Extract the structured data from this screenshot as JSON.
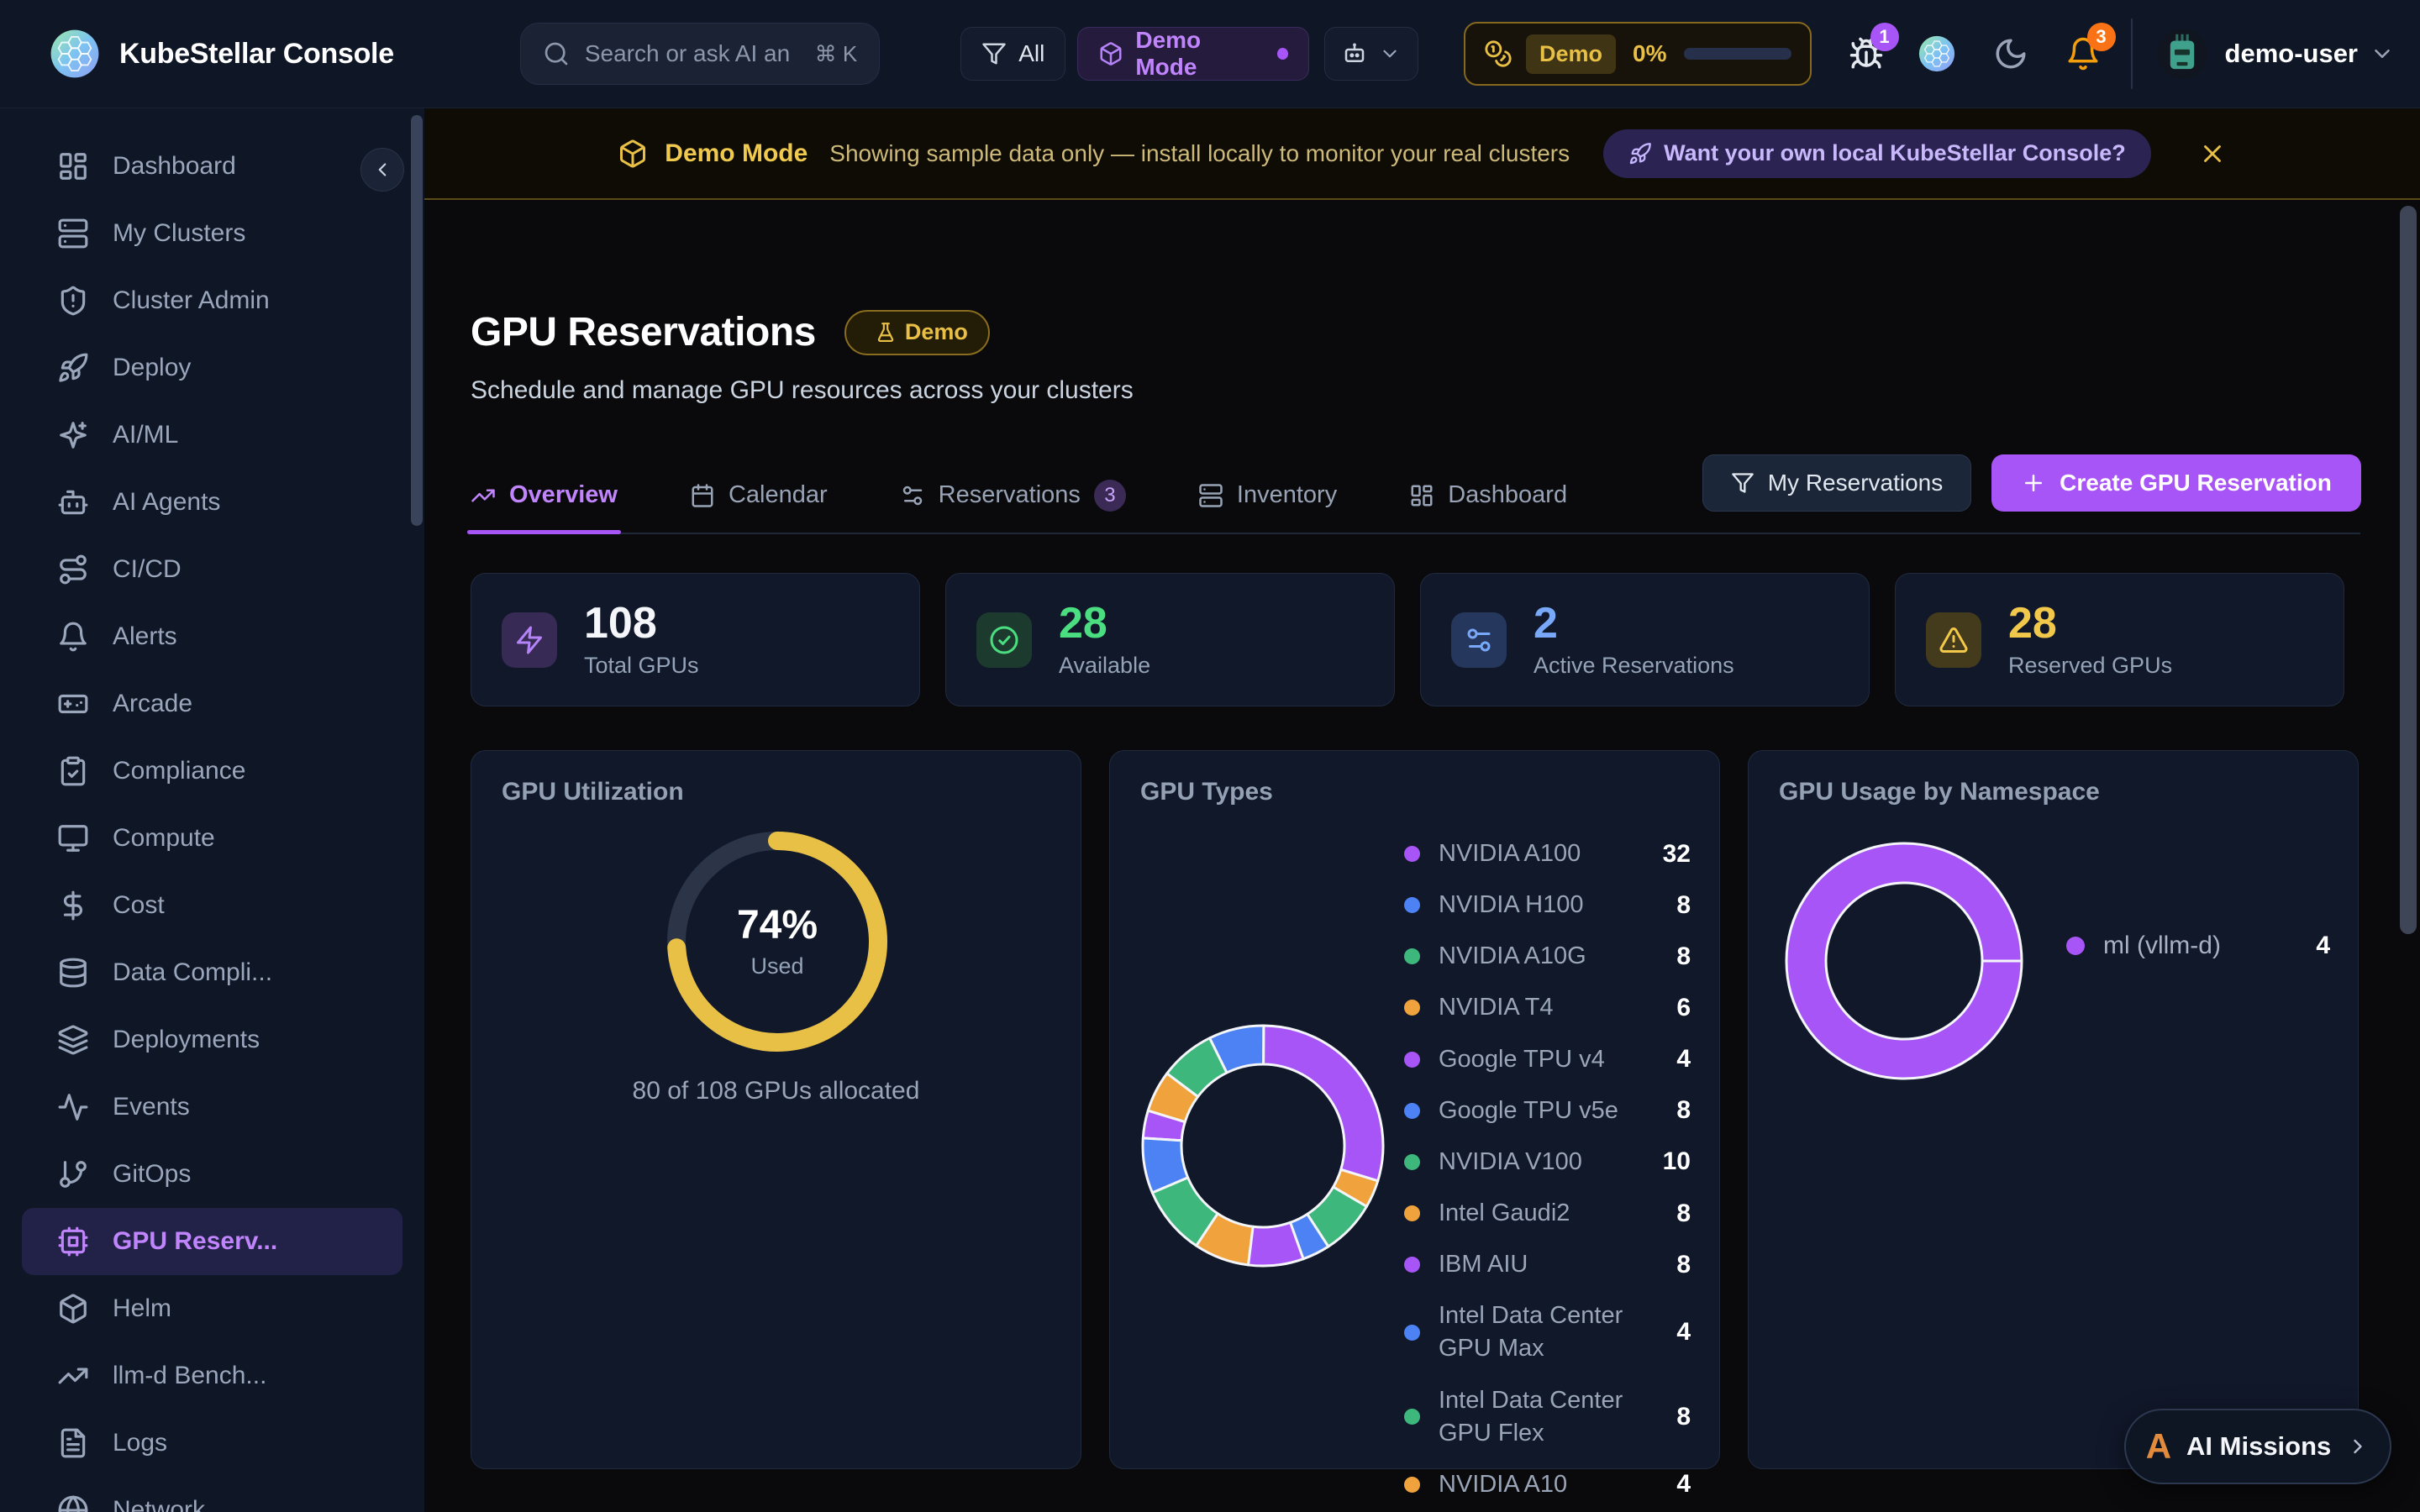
{
  "header": {
    "app_title": "KubeStellar Console",
    "search_placeholder": "Search or ask AI an",
    "search_shortcut": "⌘ K",
    "filter_all": "All",
    "demo_mode": "Demo Mode",
    "usage_badge": "Demo",
    "usage_percent": "0%",
    "bug_badge": "1",
    "bell_badge": "3",
    "user_name": "demo-user"
  },
  "sidebar": {
    "items": [
      {
        "label": "Dashboard",
        "icon": "layout"
      },
      {
        "label": "My Clusters",
        "icon": "servers"
      },
      {
        "label": "Cluster Admin",
        "icon": "shield"
      },
      {
        "label": "Deploy",
        "icon": "rocket"
      },
      {
        "label": "AI/ML",
        "icon": "sparkles"
      },
      {
        "label": "AI Agents",
        "icon": "bot"
      },
      {
        "label": "CI/CD",
        "icon": "route"
      },
      {
        "label": "Alerts",
        "icon": "bell"
      },
      {
        "label": "Arcade",
        "icon": "gamepad"
      },
      {
        "label": "Compliance",
        "icon": "clipboard"
      },
      {
        "label": "Compute",
        "icon": "monitor"
      },
      {
        "label": "Cost",
        "icon": "dollar"
      },
      {
        "label": "Data Compli...",
        "icon": "database"
      },
      {
        "label": "Deployments",
        "icon": "layers"
      },
      {
        "label": "Events",
        "icon": "activity"
      },
      {
        "label": "GitOps",
        "icon": "git"
      },
      {
        "label": "GPU Reserv...",
        "icon": "cpu",
        "active": true
      },
      {
        "label": "Helm",
        "icon": "box"
      },
      {
        "label": "llm-d Bench...",
        "icon": "trend"
      },
      {
        "label": "Logs",
        "icon": "file"
      },
      {
        "label": "Network",
        "icon": "globe"
      }
    ]
  },
  "banner": {
    "title": "Demo Mode",
    "message": "Showing sample data only — install locally to monitor your real clusters",
    "cta": "Want your own local KubeStellar Console?"
  },
  "page": {
    "title": "GPU Reservations",
    "badge": "Demo",
    "subtitle": "Schedule and manage GPU resources across your clusters"
  },
  "tabs": [
    {
      "label": "Overview",
      "icon": "trend",
      "active": true
    },
    {
      "label": "Calendar",
      "icon": "calendar"
    },
    {
      "label": "Reservations",
      "icon": "sliders",
      "badge": "3"
    },
    {
      "label": "Inventory",
      "icon": "servers"
    },
    {
      "label": "Dashboard",
      "icon": "layout"
    }
  ],
  "actions": {
    "my_reservations": "My Reservations",
    "create": "Create GPU Reservation"
  },
  "stats": [
    {
      "icon": "zap",
      "value": "108",
      "label": "Total GPUs",
      "value_color": "#f4f6fa",
      "tile_bg": "#372a54",
      "icon_color": "#b583f8"
    },
    {
      "icon": "check",
      "value": "28",
      "label": "Available",
      "value_color": "#4ade80",
      "tile_bg": "#1c3b2e",
      "icon_color": "#4ade80"
    },
    {
      "icon": "sliders",
      "value": "2",
      "label": "Active Reservations",
      "value_color": "#7aa8f9",
      "tile_bg": "#25375c",
      "icon_color": "#7aa8f9"
    },
    {
      "icon": "alert",
      "value": "28",
      "label": "Reserved GPUs",
      "value_color": "#f2c84b",
      "tile_bg": "#443a1c",
      "icon_color": "#f2c84b"
    }
  ],
  "chart_data": [
    {
      "type": "donut",
      "title": "GPU Utilization",
      "percent": 74,
      "center_label": "74%",
      "center_sublabel": "Used",
      "caption": "80 of 108 GPUs allocated",
      "arc_color": "#e9c046",
      "track_color": "#2b3547"
    },
    {
      "type": "donut",
      "title": "GPU Types",
      "start_angle": -17,
      "direction": "counterclockwise",
      "categories": [
        "NVIDIA A100",
        "NVIDIA H100",
        "NVIDIA A10G",
        "NVIDIA T4",
        "Google TPU v4",
        "Google TPU v5e",
        "NVIDIA V100",
        "Intel Gaudi2",
        "IBM AIU",
        "Intel Data Center GPU Max",
        "Intel Data Center GPU Flex",
        "NVIDIA A10"
      ],
      "values": [
        32,
        8,
        8,
        6,
        4,
        8,
        10,
        8,
        8,
        4,
        8,
        4
      ],
      "palette": [
        "#a855f7",
        "#4d82f4",
        "#3eb77d",
        "#f0a33c"
      ]
    },
    {
      "type": "donut",
      "title": "GPU Usage by Namespace",
      "categories": [
        "ml (vllm-d)"
      ],
      "values": [
        4
      ],
      "palette": [
        "#a855f7"
      ]
    }
  ],
  "ai_missions": {
    "label": "AI Missions",
    "logo": "A"
  }
}
